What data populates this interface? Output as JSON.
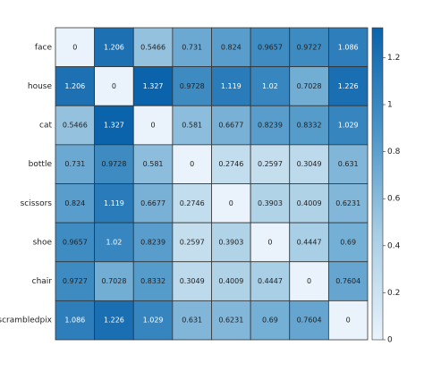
{
  "chart_data": {
    "type": "heatmap",
    "categories": [
      "face",
      "house",
      "cat",
      "bottle",
      "scissors",
      "shoe",
      "chair",
      "scrambledpix"
    ],
    "values": [
      [
        0,
        1.206,
        0.5466,
        0.731,
        0.824,
        0.9657,
        0.9727,
        1.086
      ],
      [
        1.206,
        0,
        1.327,
        0.9728,
        1.119,
        1.02,
        0.7028,
        1.226
      ],
      [
        0.5466,
        1.327,
        0,
        0.581,
        0.6677,
        0.8239,
        0.8332,
        1.029
      ],
      [
        0.731,
        0.9728,
        0.581,
        0,
        0.2746,
        0.2597,
        0.3049,
        0.631
      ],
      [
        0.824,
        1.119,
        0.6677,
        0.2746,
        0,
        0.3903,
        0.4009,
        0.6231
      ],
      [
        0.9657,
        1.02,
        0.8239,
        0.2597,
        0.3903,
        0,
        0.4447,
        0.69
      ],
      [
        0.9727,
        0.7028,
        0.8332,
        0.3049,
        0.4009,
        0.4447,
        0,
        0.7604
      ],
      [
        1.086,
        1.226,
        1.029,
        0.631,
        0.6231,
        0.69,
        0.7604,
        0
      ]
    ],
    "colors": [
      "#eaf3fb",
      "#a9cfe5",
      "#4b95c8",
      "#0b63ab"
    ],
    "clim": [
      0,
      1.327
    ],
    "cticks": [
      0,
      0.2,
      0.4,
      0.6,
      0.8,
      1,
      1.2
    ]
  }
}
